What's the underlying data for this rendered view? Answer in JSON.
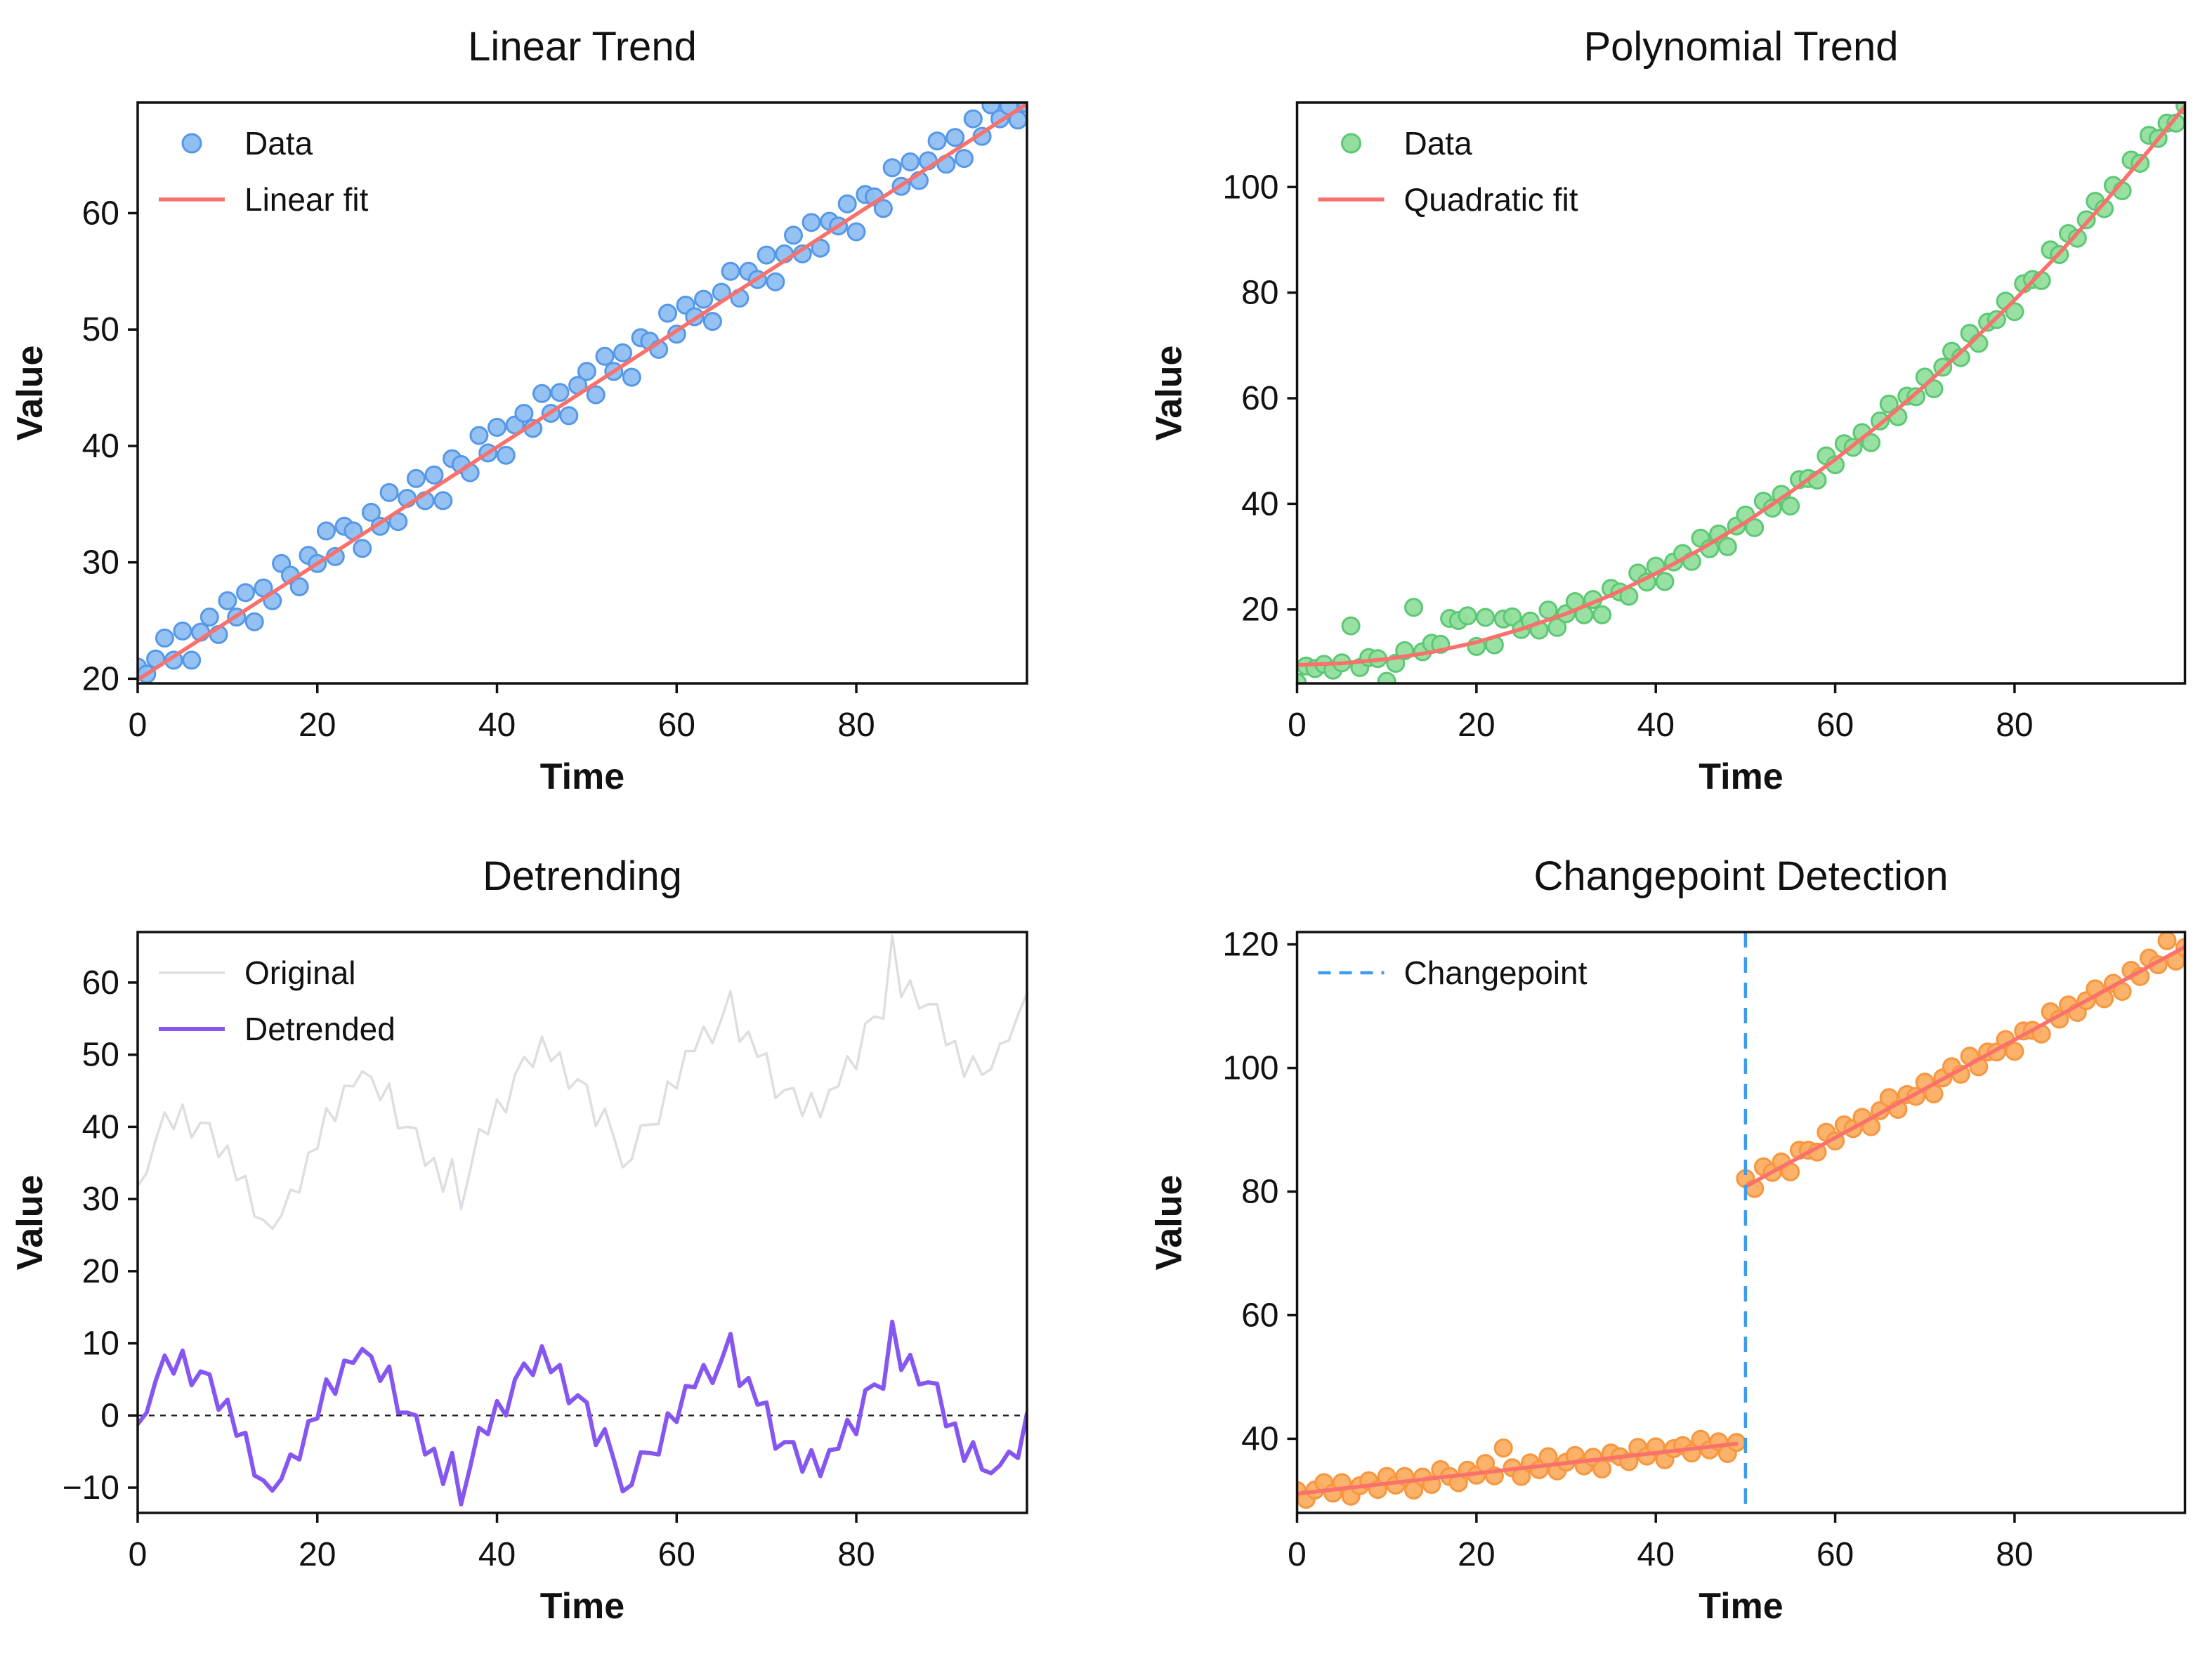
{
  "page": {
    "background": "#ffffff",
    "text_color": "#111111"
  },
  "chart_data": [
    {
      "type": "scatter",
      "title": "Linear Trend",
      "xlabel": "Time",
      "ylabel": "Value",
      "xlim": [
        0,
        99
      ],
      "ylim": [
        19.6,
        69.5
      ],
      "xticks": [
        0,
        20,
        40,
        60,
        80
      ],
      "xtick_labels": [
        "0",
        "20",
        "40",
        "60",
        "80"
      ],
      "yticks": [
        20,
        30,
        40,
        50,
        60
      ],
      "ytick_labels": [
        "20",
        "30",
        "40",
        "50",
        "60"
      ],
      "grid": false,
      "legend_position": "upper-left",
      "legend": [
        {
          "label": "Data",
          "swatch": "marker",
          "fill": "#8FBEF2",
          "stroke": "#5598E8"
        },
        {
          "label": "Linear fit",
          "swatch": "line",
          "color": "#F8716C",
          "width": 5.5
        }
      ],
      "series": [
        {
          "kind": "scatter",
          "name": "data-points",
          "fill": "#8FBEF2",
          "stroke": "#5598E8",
          "x_range": [
            0,
            99
          ],
          "y": [
            21.0,
            20.4,
            21.7,
            23.5,
            21.6,
            24.1,
            21.6,
            24.0,
            25.3,
            23.8,
            26.7,
            25.3,
            27.4,
            24.9,
            27.8,
            26.7,
            29.9,
            28.9,
            27.9,
            30.6,
            29.9,
            32.7,
            30.5,
            33.1,
            32.7,
            31.2,
            34.3,
            33.1,
            36.0,
            33.5,
            35.5,
            37.2,
            35.3,
            37.5,
            35.3,
            38.9,
            38.4,
            37.7,
            40.9,
            39.4,
            41.6,
            39.2,
            41.8,
            42.8,
            41.5,
            44.5,
            42.8,
            44.6,
            42.6,
            45.2,
            46.4,
            44.4,
            47.7,
            46.4,
            48.0,
            45.9,
            49.3,
            49.0,
            48.3,
            51.4,
            49.6,
            52.1,
            51.1,
            52.6,
            50.7,
            53.2,
            55.0,
            52.7,
            55.0,
            54.3,
            56.4,
            54.1,
            56.5,
            58.1,
            56.5,
            59.2,
            57.0,
            59.3,
            58.9,
            60.8,
            58.4,
            61.6,
            61.4,
            60.4,
            63.9,
            62.3,
            64.4,
            62.8,
            64.5,
            66.2,
            64.2,
            66.5,
            64.7,
            68.1,
            66.6,
            69.3,
            68.1,
            69.2,
            68.0,
            69.4
          ]
        },
        {
          "kind": "line",
          "name": "linear-fit",
          "color": "#F8716C",
          "width": 5.5,
          "x": [
            0,
            99
          ],
          "y": [
            19.9,
            69.4
          ]
        }
      ]
    },
    {
      "type": "scatter",
      "title": "Polynomial Trend",
      "xlabel": "Time",
      "ylabel": "Value",
      "xlim": [
        0,
        99
      ],
      "ylim": [
        6.0,
        116.0
      ],
      "xticks": [
        0,
        20,
        40,
        60,
        80
      ],
      "xtick_labels": [
        "0",
        "20",
        "40",
        "60",
        "80"
      ],
      "yticks": [
        20,
        40,
        60,
        80,
        100
      ],
      "ytick_labels": [
        "20",
        "40",
        "60",
        "80",
        "100"
      ],
      "grid": false,
      "legend_position": "upper-left",
      "legend": [
        {
          "label": "Data",
          "swatch": "marker",
          "fill": "#93DE9E",
          "stroke": "#5CC874"
        },
        {
          "label": "Quadratic fit",
          "swatch": "line",
          "color": "#F8716C",
          "width": 5.5
        }
      ],
      "series": [
        {
          "kind": "scatter",
          "name": "data-points",
          "fill": "#93DE9E",
          "stroke": "#5CC874",
          "x_range": [
            0,
            99
          ],
          "y": [
            6.2,
            9.3,
            8.8,
            9.6,
            8.5,
            9.9,
            16.9,
            9.0,
            10.9,
            10.7,
            6.4,
            9.8,
            12.2,
            20.4,
            12.0,
            13.6,
            13.4,
            18.3,
            17.9,
            18.8,
            13.0,
            18.5,
            13.3,
            18.2,
            18.6,
            16.2,
            17.8,
            16.1,
            19.9,
            16.6,
            19.2,
            21.5,
            19.0,
            21.9,
            19.0,
            24.0,
            23.3,
            22.5,
            26.9,
            25.2,
            28.2,
            25.3,
            29.0,
            30.6,
            29.1,
            33.5,
            31.5,
            34.3,
            31.9,
            35.8,
            37.9,
            35.5,
            40.5,
            39.2,
            41.8,
            39.6,
            44.6,
            44.8,
            44.5,
            49.1,
            47.4,
            51.4,
            50.7,
            53.5,
            51.6,
            55.7,
            58.9,
            56.5,
            60.4,
            60.3,
            64.0,
            61.8,
            65.9,
            68.9,
            67.7,
            72.3,
            70.4,
            74.4,
            74.9,
            78.4,
            76.4,
            81.7,
            82.5,
            82.3,
            88.1,
            87.2,
            91.2,
            90.3,
            93.8,
            97.3,
            95.9,
            100.3,
            99.3,
            105.1,
            104.5,
            109.8,
            109.2,
            112.1,
            112.1,
            115.5
          ]
        },
        {
          "kind": "line",
          "name": "quadratic-fit",
          "color": "#F8716C",
          "width": 5.5,
          "x": [
            0,
            5,
            10,
            15,
            20,
            25,
            30,
            35,
            40,
            45,
            50,
            55,
            60,
            65,
            70,
            75,
            80,
            85,
            90,
            95,
            99
          ],
          "y": [
            9.5,
            9.8,
            10.6,
            11.9,
            13.8,
            16.3,
            19.2,
            22.7,
            26.8,
            31.4,
            36.5,
            42.2,
            48.4,
            55.1,
            62.4,
            70.3,
            78.6,
            87.5,
            97.0,
            107.0,
            115.3
          ]
        }
      ]
    },
    {
      "type": "line",
      "title": "Detrending",
      "xlabel": "Time",
      "ylabel": "Value",
      "xlim": [
        0,
        99
      ],
      "ylim": [
        -13.5,
        67.0
      ],
      "xticks": [
        0,
        20,
        40,
        60,
        80
      ],
      "xtick_labels": [
        "0",
        "20",
        "40",
        "60",
        "80"
      ],
      "yticks": [
        -10,
        0,
        10,
        20,
        30,
        40,
        50,
        60
      ],
      "ytick_labels": [
        "−10",
        "0",
        "10",
        "20",
        "30",
        "40",
        "50",
        "60"
      ],
      "grid": false,
      "legend_position": "upper-left",
      "zero_line": {
        "y": 0,
        "style": "dashed",
        "color": "#222222"
      },
      "legend": [
        {
          "label": "Original",
          "swatch": "line",
          "color": "#DCDEE2",
          "width": 3.5
        },
        {
          "label": "Detrended",
          "swatch": "line",
          "color": "#8657F0",
          "width": 6
        }
      ],
      "series": [
        {
          "kind": "hline",
          "name": "zero-line",
          "y": 0,
          "color": "#222222",
          "width": 2.5,
          "dash": [
            8,
            8
          ]
        },
        {
          "kind": "line",
          "name": "original-series",
          "color": "#DCDEE2",
          "width": 3.5,
          "x_range": [
            0,
            99
          ],
          "y": [
            31.8,
            33.6,
            38.2,
            42.0,
            39.7,
            43.1,
            38.5,
            40.6,
            40.5,
            35.8,
            37.4,
            32.6,
            33.2,
            27.6,
            27.1,
            25.9,
            27.7,
            31.3,
            30.9,
            36.4,
            37.0,
            42.6,
            40.8,
            45.7,
            45.6,
            47.7,
            46.9,
            43.7,
            46.0,
            39.8,
            40.0,
            39.8,
            34.6,
            35.7,
            31.0,
            35.5,
            28.6,
            33.9,
            39.7,
            39.0,
            43.8,
            42.0,
            47.2,
            49.7,
            48.3,
            52.5,
            49.1,
            50.3,
            45.3,
            46.6,
            45.8,
            40.1,
            42.5,
            38.6,
            34.4,
            35.5,
            40.2,
            40.3,
            40.4,
            46.3,
            45.3,
            50.5,
            50.5,
            53.9,
            51.6,
            55.0,
            58.8,
            51.8,
            53.2,
            49.7,
            50.2,
            44.0,
            45.1,
            45.4,
            41.5,
            44.7,
            41.3,
            45.1,
            45.6,
            49.8,
            48.0,
            54.3,
            55.3,
            55.0,
            66.5,
            58.0,
            60.3,
            56.4,
            57.0,
            57.0,
            51.3,
            51.9,
            46.9,
            49.8,
            47.2,
            48.0,
            51.5,
            52.0,
            55.5,
            58.5
          ]
        },
        {
          "kind": "line",
          "name": "detrended-series",
          "color": "#8657F0",
          "width": 6,
          "x_range": [
            0,
            99
          ],
          "y": [
            -1.2,
            0.4,
            4.8,
            8.3,
            5.8,
            9.0,
            4.2,
            6.1,
            5.7,
            0.8,
            2.2,
            -2.8,
            -2.4,
            -8.3,
            -9.0,
            -10.4,
            -8.8,
            -5.4,
            -6.1,
            -0.8,
            -0.4,
            5.0,
            3.0,
            7.6,
            7.3,
            9.2,
            8.2,
            4.8,
            6.8,
            0.4,
            0.4,
            0.0,
            -5.4,
            -4.6,
            -9.5,
            -5.2,
            -12.3,
            -7.2,
            -1.7,
            -2.6,
            2.0,
            0.0,
            5.0,
            7.2,
            5.6,
            9.6,
            6.0,
            7.0,
            1.7,
            2.8,
            1.8,
            -4.1,
            -1.9,
            -6.1,
            -10.5,
            -9.6,
            -5.1,
            -5.2,
            -5.4,
            0.3,
            -0.9,
            4.1,
            3.9,
            7.0,
            4.5,
            7.7,
            11.3,
            4.1,
            5.2,
            1.5,
            1.8,
            -4.6,
            -3.7,
            -3.7,
            -7.8,
            -4.8,
            -8.4,
            -4.8,
            -4.6,
            -0.6,
            -2.6,
            3.5,
            4.3,
            3.7,
            13.0,
            6.3,
            8.4,
            4.3,
            4.6,
            4.4,
            -1.5,
            -1.1,
            -6.3,
            -3.7,
            -7.5,
            -8.0,
            -6.9,
            -5.0,
            -5.9,
            0.3
          ]
        }
      ]
    },
    {
      "type": "scatter",
      "title": "Changepoint Detection",
      "xlabel": "Time",
      "ylabel": "Value",
      "xlim": [
        0,
        99
      ],
      "ylim": [
        28.0,
        122.0
      ],
      "xticks": [
        0,
        20,
        40,
        60,
        80
      ],
      "xtick_labels": [
        "0",
        "20",
        "40",
        "60",
        "80"
      ],
      "yticks": [
        40,
        60,
        80,
        100,
        120
      ],
      "ytick_labels": [
        "40",
        "60",
        "80",
        "100",
        "120"
      ],
      "grid": false,
      "legend_position": "upper-left",
      "changepoint_x": 50,
      "legend": [
        {
          "label": "Changepoint",
          "swatch": "dashed",
          "color": "#3E9CED",
          "width": 4.5
        }
      ],
      "series": [
        {
          "kind": "scatter",
          "name": "data-points",
          "fill": "#FBAE63",
          "stroke": "#F7963F",
          "x_range": [
            0,
            99
          ],
          "y": [
            31.6,
            30.2,
            31.7,
            32.9,
            31.2,
            32.9,
            30.7,
            32.4,
            33.2,
            31.8,
            33.9,
            32.5,
            33.9,
            31.7,
            33.8,
            32.6,
            35.0,
            33.9,
            32.9,
            34.9,
            34.1,
            36.0,
            34.0,
            38.5,
            35.3,
            33.9,
            36.1,
            35.0,
            37.1,
            34.8,
            36.2,
            37.3,
            35.6,
            37.0,
            35.1,
            37.7,
            37.1,
            36.3,
            38.6,
            37.2,
            38.7,
            36.6,
            38.4,
            38.9,
            37.7,
            39.9,
            38.2,
            39.5,
            37.6,
            39.4,
            82.1,
            80.5,
            84.0,
            83.1,
            84.8,
            83.2,
            86.7,
            86.7,
            86.4,
            89.6,
            88.2,
            90.8,
            90.2,
            92.0,
            90.5,
            93.1,
            95.2,
            93.3,
            95.7,
            95.4,
            97.7,
            95.8,
            98.4,
            100.2,
            99.0,
            101.9,
            100.2,
            102.6,
            102.6,
            104.6,
            102.7,
            106.0,
            106.1,
            105.5,
            109.1,
            107.9,
            110.2,
            109.0,
            110.9,
            112.8,
            111.2,
            113.7,
            112.4,
            115.8,
            114.8,
            117.8,
            116.7,
            120.6,
            117.3,
            119.5
          ]
        },
        {
          "kind": "line",
          "name": "segment1-fit",
          "color": "#F8716C",
          "width": 5.5,
          "x": [
            0,
            49
          ],
          "y": [
            31.1,
            39.2
          ]
        },
        {
          "kind": "line",
          "name": "segment2-fit",
          "color": "#F8716C",
          "width": 5.5,
          "x": [
            50,
            99
          ],
          "y": [
            80.8,
            119.6
          ]
        },
        {
          "kind": "vline",
          "name": "changepoint-line",
          "x": 50,
          "color": "#3E9CED",
          "width": 4.5,
          "dash": [
            22,
            14
          ]
        }
      ]
    }
  ]
}
